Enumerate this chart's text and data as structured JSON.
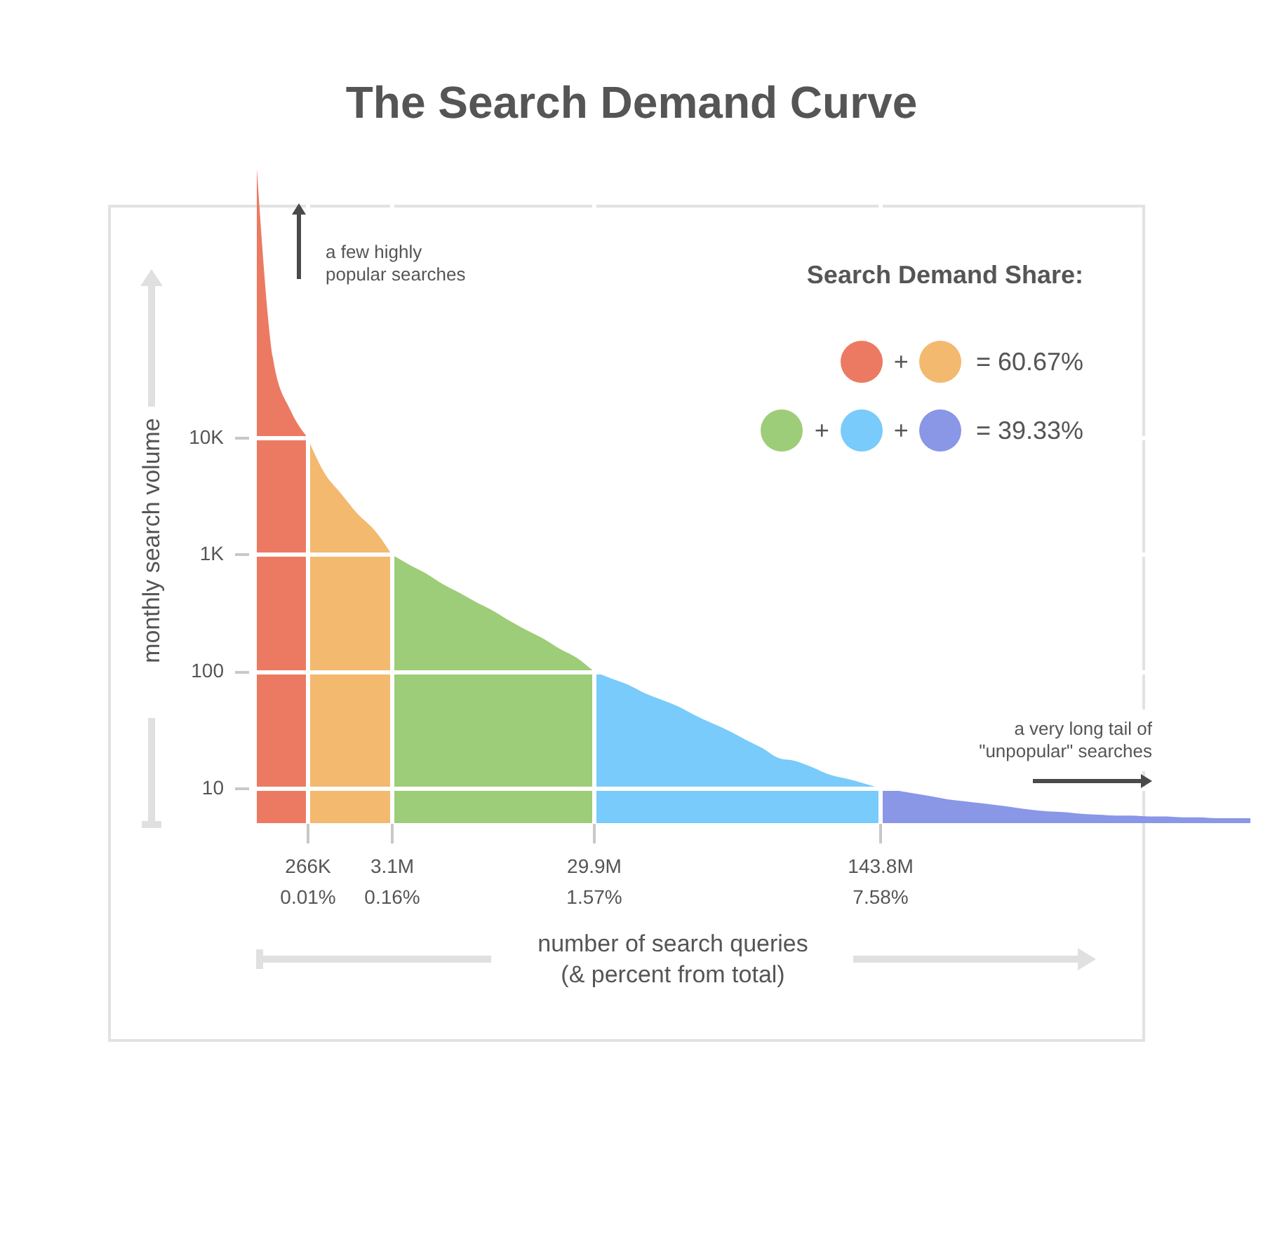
{
  "chart_data": {
    "type": "area",
    "title": "The Search Demand Curve",
    "xlabel": "number of search queries\n(& percent from total)",
    "ylabel": "monthly search volume",
    "legend_title": "Search Demand Share:",
    "log": "y",
    "grid": true,
    "annotations": [
      "a few highly\npopular searches",
      "a very long tail of\n\"unpopular\" searches",
      "+",
      "= 60.67%",
      "= 39.33%"
    ],
    "categories": [
      null,
      null,
      null,
      "266K\n0.01%",
      null,
      null,
      null,
      null,
      "3.1M\n0.16%",
      null,
      null,
      null,
      null,
      null,
      null,
      null,
      null,
      null,
      null,
      null,
      "29.9M\n1.57%",
      null,
      null,
      null,
      null,
      null,
      null,
      null,
      null,
      null,
      null,
      null,
      null,
      null,
      null,
      null,
      null,
      "143.8M\n7.58%",
      null,
      null,
      null,
      null,
      null,
      null,
      null,
      null,
      null,
      null,
      null,
      null,
      null,
      null,
      null,
      null,
      null,
      null,
      null,
      null,
      null,
      null
    ],
    "ylim": [
      5,
      4000000
    ],
    "yticks": [
      10,
      100,
      {
        "value": 1000,
        "label": "1K"
      },
      {
        "value": 10000,
        "label": "10K"
      }
    ],
    "series": [
      {
        "color": "#ec7a63",
        "values": [
          2000000,
          44000,
          17000,
          10000,
          null,
          null,
          null,
          null,
          null,
          null,
          null,
          null,
          null,
          null,
          null,
          null,
          null,
          null,
          null,
          null,
          null,
          null,
          null,
          null,
          null,
          null,
          null,
          null,
          null,
          null,
          null,
          null,
          null,
          null,
          null,
          null,
          null,
          null,
          null,
          null,
          null,
          null,
          null,
          null,
          null,
          null,
          null,
          null,
          null,
          null,
          null,
          null,
          null,
          null,
          null,
          null,
          null,
          null,
          null,
          null
        ]
      },
      {
        "color": "#f2b96f",
        "values": [
          null,
          null,
          null,
          10000,
          5000,
          3300,
          2200,
          1600,
          1000,
          null,
          null,
          null,
          null,
          null,
          null,
          null,
          null,
          null,
          null,
          null,
          null,
          null,
          null,
          null,
          null,
          null,
          null,
          null,
          null,
          null,
          null,
          null,
          null,
          null,
          null,
          null,
          null,
          null,
          null,
          null,
          null,
          null,
          null,
          null,
          null,
          null,
          null,
          null,
          null,
          null,
          null,
          null,
          null,
          null,
          null,
          null,
          null,
          null,
          null,
          null
        ]
      },
      {
        "color": "#9dcd78",
        "values": [
          null,
          null,
          null,
          null,
          null,
          null,
          null,
          null,
          1000,
          820,
          690,
          560,
          470,
          390,
          330,
          270,
          225,
          190,
          155,
          130,
          100,
          null,
          null,
          null,
          null,
          null,
          null,
          null,
          null,
          null,
          null,
          null,
          null,
          null,
          null,
          null,
          null,
          null,
          null,
          null,
          null,
          null,
          null,
          null,
          null,
          null,
          null,
          null,
          null,
          null,
          null,
          null,
          null,
          null,
          null,
          null,
          null,
          null,
          null,
          null
        ]
      },
      {
        "color": "#78cbfa",
        "values": [
          null,
          null,
          null,
          null,
          null,
          null,
          null,
          null,
          null,
          null,
          null,
          null,
          null,
          null,
          null,
          null,
          null,
          null,
          null,
          null,
          100,
          87,
          77,
          65,
          57,
          50,
          42,
          36,
          31,
          26,
          22,
          18,
          17,
          15,
          13,
          12,
          11,
          10,
          null,
          null,
          null,
          null,
          null,
          null,
          null,
          null,
          null,
          null,
          null,
          null,
          null,
          null,
          null,
          null,
          null,
          null,
          null,
          null,
          null,
          null
        ]
      },
      {
        "color": "#8a96e6",
        "values": [
          null,
          null,
          null,
          null,
          null,
          null,
          null,
          null,
          null,
          null,
          null,
          null,
          null,
          null,
          null,
          null,
          null,
          null,
          null,
          null,
          null,
          null,
          null,
          null,
          null,
          null,
          null,
          null,
          null,
          null,
          null,
          null,
          null,
          null,
          null,
          null,
          null,
          10,
          9.5,
          9,
          8.5,
          8,
          7.7,
          7.4,
          7.1,
          6.8,
          6.5,
          6.3,
          6.2,
          6,
          5.9,
          5.8,
          5.8,
          5.7,
          5.7,
          5.6,
          5.6,
          5.5,
          5.5,
          5.5
        ]
      }
    ]
  }
}
